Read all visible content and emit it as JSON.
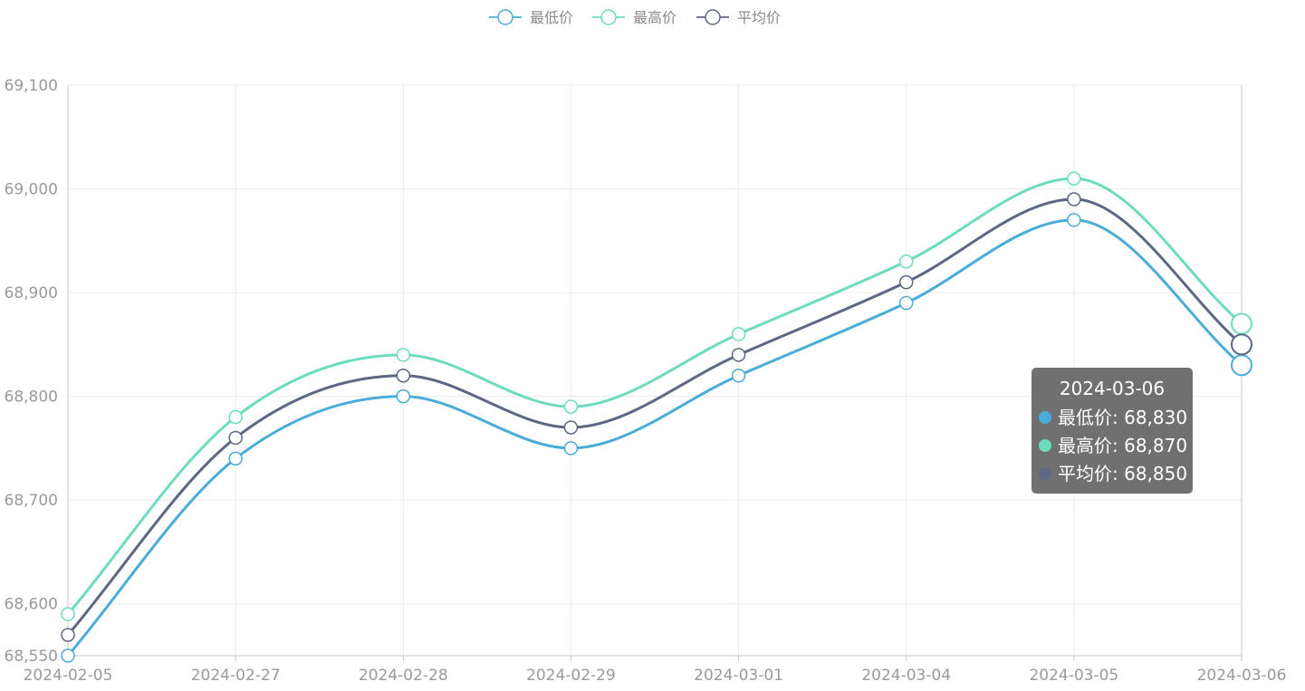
{
  "chart_data": {
    "type": "line",
    "smooth": true,
    "categories": [
      "2024-02-05",
      "2024-02-27",
      "2024-02-28",
      "2024-02-29",
      "2024-03-01",
      "2024-03-04",
      "2024-03-05",
      "2024-03-06"
    ],
    "series": [
      {
        "name": "最低价",
        "color": "#4aacd8",
        "values": [
          68550,
          68740,
          68800,
          68750,
          68820,
          68890,
          68970,
          68830
        ]
      },
      {
        "name": "最高价",
        "color": "#6ddbbd",
        "values": [
          68590,
          68780,
          68840,
          68790,
          68860,
          68930,
          69010,
          68870
        ]
      },
      {
        "name": "平均价",
        "color": "#5e6783",
        "values": [
          68570,
          68760,
          68820,
          68770,
          68840,
          68910,
          68990,
          68850
        ]
      }
    ],
    "yticks": [
      "68,550",
      "68,600",
      "68,700",
      "68,800",
      "68,900",
      "69,000",
      "69,100"
    ],
    "ylim": [
      68550,
      69100
    ],
    "grid": true,
    "legend_position": "top-center",
    "highlighted_index": 7
  },
  "tooltip": {
    "title": "2024-03-06",
    "rows": [
      {
        "label": "最低价: 68,830",
        "color": "#4aacd8"
      },
      {
        "label": "最高价: 68,870",
        "color": "#6ddbbd"
      },
      {
        "label": "平均价: 68,850",
        "color": "#5e6783"
      }
    ]
  }
}
